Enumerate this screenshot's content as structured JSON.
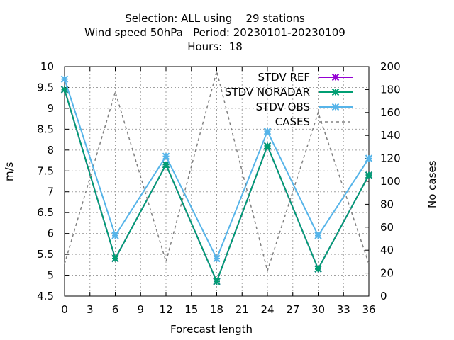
{
  "title_lines": [
    "Selection: ALL using    29 stations",
    "Wind speed 50hPa   Period: 20230101-20230109",
    "Hours:  18"
  ],
  "chart_data": {
    "type": "line",
    "xlabel": "Forecast length",
    "ylabel": "m/s",
    "y2label": "No cases",
    "x_ticks": [
      0,
      3,
      6,
      9,
      12,
      15,
      18,
      21,
      24,
      27,
      30,
      33,
      36
    ],
    "xlim": [
      0,
      36
    ],
    "ylim": [
      4.5,
      10
    ],
    "y_ticks": [
      4.5,
      5,
      5.5,
      6,
      6.5,
      7,
      7.5,
      8,
      8.5,
      9,
      9.5,
      10
    ],
    "y2lim": [
      0,
      200
    ],
    "y2_ticks": [
      0,
      20,
      40,
      60,
      80,
      100,
      120,
      140,
      160,
      180,
      200
    ],
    "grid": true,
    "legend_position": "top-right",
    "x": [
      0,
      6,
      12,
      18,
      24,
      30,
      36
    ],
    "series": [
      {
        "name": "STDV REF",
        "color": "#9400d3",
        "axis": "y",
        "style": "line-points",
        "values": [
          9.45,
          5.4,
          7.65,
          4.85,
          8.1,
          5.15,
          7.4
        ]
      },
      {
        "name": "STDV NORADAR",
        "color": "#009e73",
        "axis": "y",
        "style": "line-points",
        "values": [
          9.45,
          5.4,
          7.65,
          4.85,
          8.1,
          5.15,
          7.4
        ]
      },
      {
        "name": "STDV OBS",
        "color": "#56b4e9",
        "axis": "y",
        "style": "line-points",
        "values": [
          9.7,
          5.95,
          7.85,
          5.4,
          8.45,
          5.95,
          7.8
        ]
      },
      {
        "name": "CASES",
        "color": "#808080",
        "axis": "y2",
        "style": "dashed",
        "values": [
          28,
          178,
          30,
          196,
          22,
          160,
          28
        ]
      }
    ]
  }
}
